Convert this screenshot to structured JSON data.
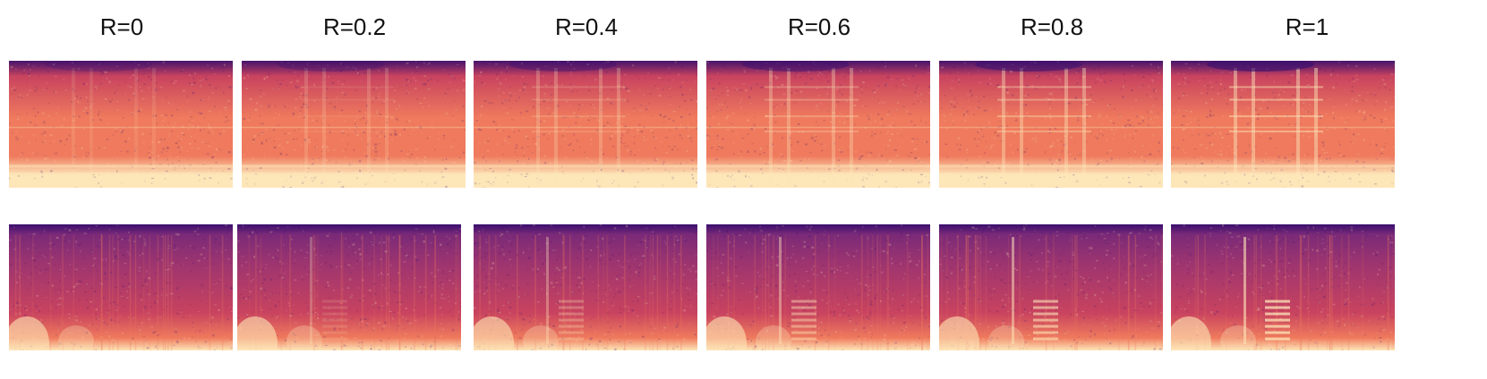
{
  "columns": [
    {
      "label": "R=0",
      "ratio": 0
    },
    {
      "label": "R=0.2",
      "ratio": 0.2
    },
    {
      "label": "R=0.4",
      "ratio": 0.4
    },
    {
      "label": "R=0.6",
      "ratio": 0.6
    },
    {
      "label": "R=0.8",
      "ratio": 0.8
    },
    {
      "label": "R=1",
      "ratio": 1
    }
  ],
  "rows": [
    {
      "id": "row-1"
    },
    {
      "id": "row-2"
    }
  ],
  "colors": {
    "spec_dark": "#3a0f6e",
    "spec_mid": "#c8435f",
    "spec_warm": "#ef7a5d",
    "spec_light": "#fde6b8"
  }
}
